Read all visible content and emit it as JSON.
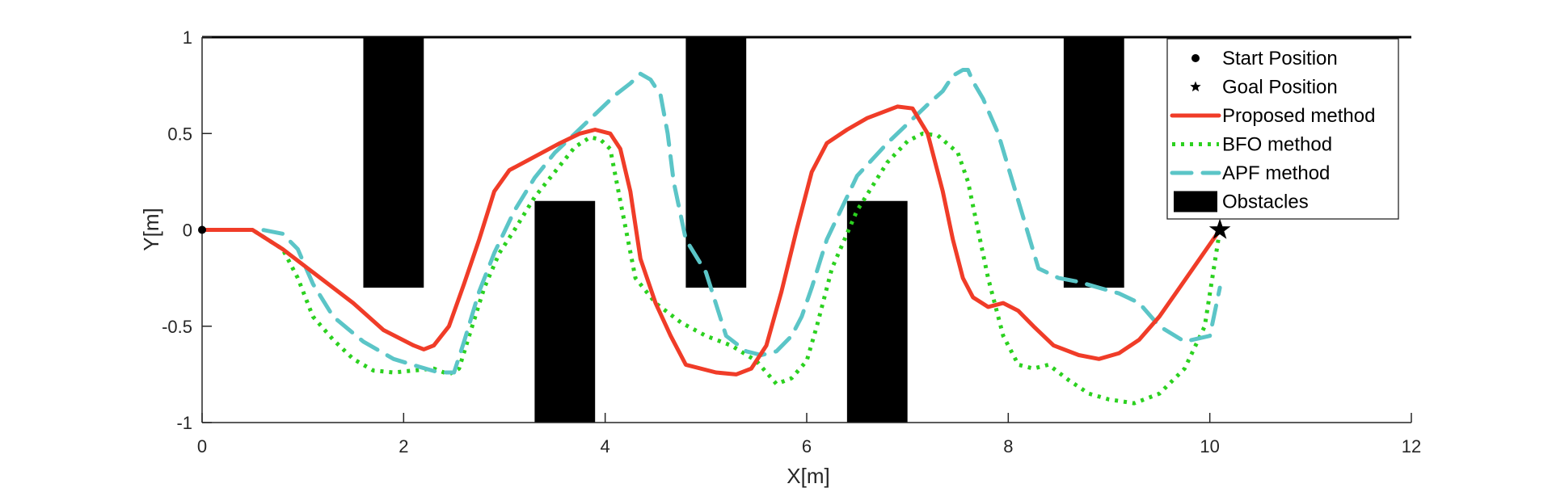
{
  "chart_data": {
    "type": "line",
    "xlabel": "X[m]",
    "ylabel": "Y[m]",
    "xlim": [
      0,
      12
    ],
    "ylim": [
      -1,
      1
    ],
    "xticks": [
      "0",
      "2",
      "4",
      "6",
      "8",
      "10",
      "12"
    ],
    "yticks": [
      "-1",
      "-0.5",
      "0",
      "0.5",
      "1"
    ],
    "xtick_values": [
      0,
      2,
      4,
      6,
      8,
      10,
      12
    ],
    "ytick_values": [
      -1,
      -0.5,
      0,
      0.5,
      1
    ],
    "grid": false,
    "legend_position": "top-right",
    "legend": [
      {
        "label": "Start Position",
        "kind": "marker-dot",
        "color": "#000000"
      },
      {
        "label": "Goal Position",
        "kind": "marker-star",
        "color": "#000000"
      },
      {
        "label": "Proposed method",
        "kind": "line-solid",
        "color": "#f03c28"
      },
      {
        "label": "BFO method",
        "kind": "line-dotted",
        "color": "#2bd11f"
      },
      {
        "label": "APF method",
        "kind": "line-dashed",
        "color": "#5bc5c7"
      },
      {
        "label": "Obstacles",
        "kind": "patch",
        "color": "#000000"
      }
    ],
    "top_boundary_y": 1,
    "obstacles": [
      {
        "x": [
          1.6,
          2.2
        ],
        "y": [
          -0.3,
          1.0
        ]
      },
      {
        "x": [
          3.3,
          3.9
        ],
        "y": [
          -1.0,
          0.15
        ]
      },
      {
        "x": [
          4.8,
          5.4
        ],
        "y": [
          -0.3,
          1.0
        ]
      },
      {
        "x": [
          6.4,
          7.0
        ],
        "y": [
          -1.0,
          0.15
        ]
      },
      {
        "x": [
          8.55,
          9.15
        ],
        "y": [
          -0.3,
          1.0
        ]
      }
    ],
    "start": {
      "x": 0,
      "y": 0,
      "color": "#000000"
    },
    "goal": {
      "x": 10.1,
      "y": 0,
      "color": "#000000"
    },
    "series": [
      {
        "name": "Proposed method",
        "color": "#f03c28",
        "style": "solid",
        "x": [
          0,
          0.5,
          0.8,
          1.1,
          1.5,
          1.8,
          2.1,
          2.2,
          2.3,
          2.45,
          2.6,
          2.75,
          2.9,
          3.05,
          3.3,
          3.55,
          3.75,
          3.9,
          4.05,
          4.15,
          4.25,
          4.35,
          4.5,
          4.65,
          4.8,
          5.1,
          5.3,
          5.45,
          5.6,
          5.75,
          5.9,
          6.05,
          6.2,
          6.4,
          6.6,
          6.9,
          7.05,
          7.2,
          7.35,
          7.45,
          7.55,
          7.65,
          7.8,
          7.95,
          8.1,
          8.25,
          8.45,
          8.7,
          8.9,
          9.1,
          9.3,
          9.5,
          9.7,
          9.9,
          10.1
        ],
        "y": [
          0,
          0,
          -0.1,
          -0.22,
          -0.38,
          -0.52,
          -0.6,
          -0.62,
          -0.6,
          -0.5,
          -0.28,
          -0.05,
          0.2,
          0.31,
          0.38,
          0.45,
          0.5,
          0.52,
          0.5,
          0.42,
          0.2,
          -0.15,
          -0.38,
          -0.55,
          -0.7,
          -0.74,
          -0.75,
          -0.72,
          -0.6,
          -0.32,
          0.0,
          0.3,
          0.45,
          0.52,
          0.58,
          0.64,
          0.63,
          0.5,
          0.2,
          -0.05,
          -0.25,
          -0.35,
          -0.4,
          -0.38,
          -0.42,
          -0.5,
          -0.6,
          -0.65,
          -0.67,
          -0.64,
          -0.57,
          -0.45,
          -0.3,
          -0.15,
          0
        ]
      },
      {
        "name": "BFO method",
        "color": "#2bd11f",
        "style": "dotted",
        "x": [
          0,
          0.5,
          0.8,
          0.95,
          1.1,
          1.3,
          1.5,
          1.7,
          1.9,
          2.1,
          2.3,
          2.45,
          2.55,
          2.65,
          2.8,
          2.95,
          3.1,
          3.3,
          3.5,
          3.7,
          3.85,
          3.95,
          4.05,
          4.15,
          4.3,
          4.5,
          4.75,
          5.0,
          5.25,
          5.5,
          5.7,
          5.85,
          6.0,
          6.1,
          6.25,
          6.5,
          6.8,
          7.0,
          7.15,
          7.3,
          7.5,
          7.6,
          7.7,
          7.8,
          7.95,
          8.1,
          8.25,
          8.4,
          8.6,
          8.8,
          9.0,
          9.25,
          9.5,
          9.75,
          9.95,
          10.1
        ],
        "y": [
          0,
          0,
          -0.1,
          -0.25,
          -0.45,
          -0.57,
          -0.67,
          -0.73,
          -0.74,
          -0.73,
          -0.72,
          -0.75,
          -0.72,
          -0.55,
          -0.3,
          -0.12,
          0.0,
          0.17,
          0.3,
          0.43,
          0.48,
          0.47,
          0.42,
          0.15,
          -0.25,
          -0.38,
          -0.48,
          -0.55,
          -0.6,
          -0.68,
          -0.8,
          -0.77,
          -0.68,
          -0.5,
          -0.2,
          0.1,
          0.35,
          0.46,
          0.5,
          0.49,
          0.4,
          0.25,
          0.0,
          -0.25,
          -0.55,
          -0.7,
          -0.72,
          -0.7,
          -0.78,
          -0.85,
          -0.88,
          -0.9,
          -0.85,
          -0.72,
          -0.5,
          0
        ]
      },
      {
        "name": "APF method",
        "color": "#5bc5c7",
        "style": "dashed",
        "x": [
          0,
          0.6,
          0.8,
          0.95,
          1.1,
          1.3,
          1.6,
          1.9,
          2.15,
          2.35,
          2.5,
          2.6,
          2.75,
          2.9,
          3.1,
          3.3,
          3.5,
          3.7,
          3.9,
          4.1,
          4.25,
          4.35,
          4.45,
          4.55,
          4.62,
          4.68,
          4.8,
          5.0,
          5.2,
          5.4,
          5.55,
          5.7,
          5.85,
          5.95,
          6.05,
          6.2,
          6.5,
          6.8,
          7.0,
          7.1,
          7.2,
          7.35,
          7.45,
          7.55,
          7.6,
          7.65,
          7.75,
          7.9,
          8.1,
          8.3,
          8.5,
          8.7,
          8.9,
          9.1,
          9.3,
          9.5,
          9.75,
          10.0,
          10.1
        ],
        "y": [
          0,
          0,
          -0.02,
          -0.1,
          -0.28,
          -0.45,
          -0.58,
          -0.67,
          -0.71,
          -0.74,
          -0.74,
          -0.58,
          -0.32,
          -0.12,
          0.1,
          0.27,
          0.4,
          0.5,
          0.6,
          0.7,
          0.76,
          0.81,
          0.78,
          0.7,
          0.5,
          0.25,
          -0.05,
          -0.22,
          -0.55,
          -0.63,
          -0.65,
          -0.63,
          -0.55,
          -0.45,
          -0.3,
          -0.05,
          0.28,
          0.45,
          0.55,
          0.6,
          0.65,
          0.72,
          0.8,
          0.83,
          0.83,
          0.77,
          0.68,
          0.5,
          0.15,
          -0.2,
          -0.25,
          -0.27,
          -0.3,
          -0.33,
          -0.38,
          -0.5,
          -0.58,
          -0.55,
          -0.3
        ]
      }
    ]
  }
}
